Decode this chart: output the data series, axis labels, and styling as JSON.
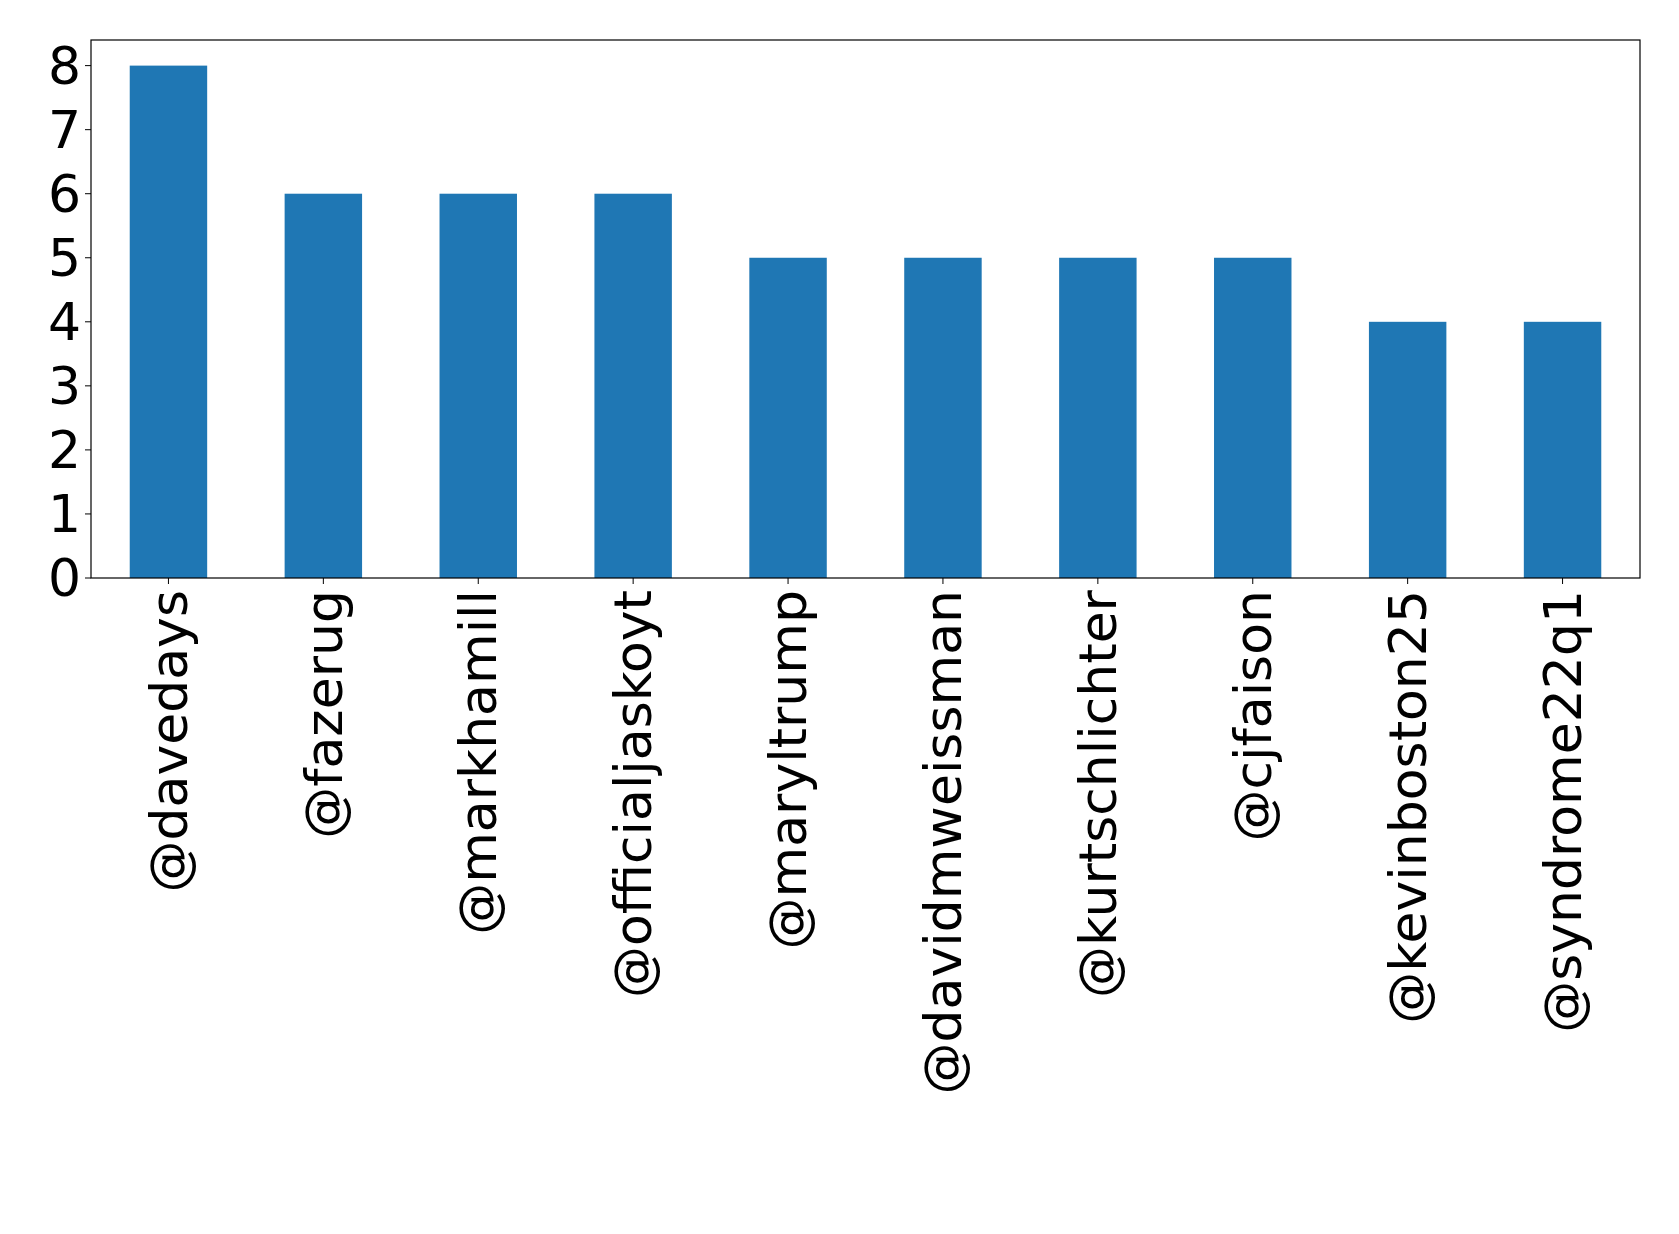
{
  "chart_data": {
    "type": "bar",
    "categories": [
      "@davedays",
      "@fazerug",
      "@markhamill",
      "@officialjaskoyt",
      "@maryltrump",
      "@davidmweissman",
      "@kurtschlichter",
      "@cjfaison",
      "@kevinboston25",
      "@syndrome22q1"
    ],
    "values": [
      8,
      6,
      6,
      6,
      5,
      5,
      5,
      5,
      4,
      4
    ],
    "color": "#1f77b4",
    "ylim": [
      0,
      8.4
    ],
    "yticks": [
      0,
      1,
      2,
      3,
      4,
      5,
      6,
      7,
      8
    ],
    "grid": false
  }
}
